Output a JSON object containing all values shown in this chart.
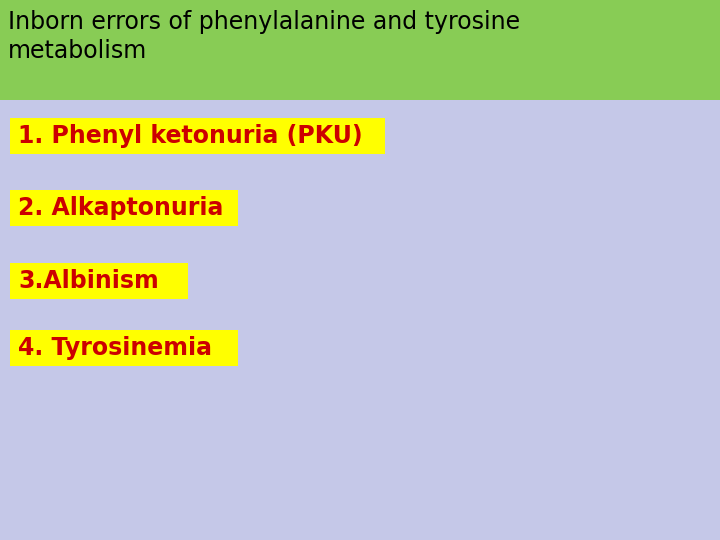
{
  "title_line1": "Inborn errors of phenylalanine and tyrosine",
  "title_line2": "metabolism",
  "title_bg_color": "#88CC55",
  "title_text_color": "#000000",
  "body_bg_color": "#C5C8E8",
  "items": [
    "1. Phenyl ketonuria (PKU)",
    "2. Alkaptonuria",
    "3.Albinism",
    "4. Tyrosinemia"
  ],
  "item_bg_color": "#FFFF00",
  "item_text_color": "#CC0000",
  "title_fontsize": 17,
  "item_fontsize": 17
}
